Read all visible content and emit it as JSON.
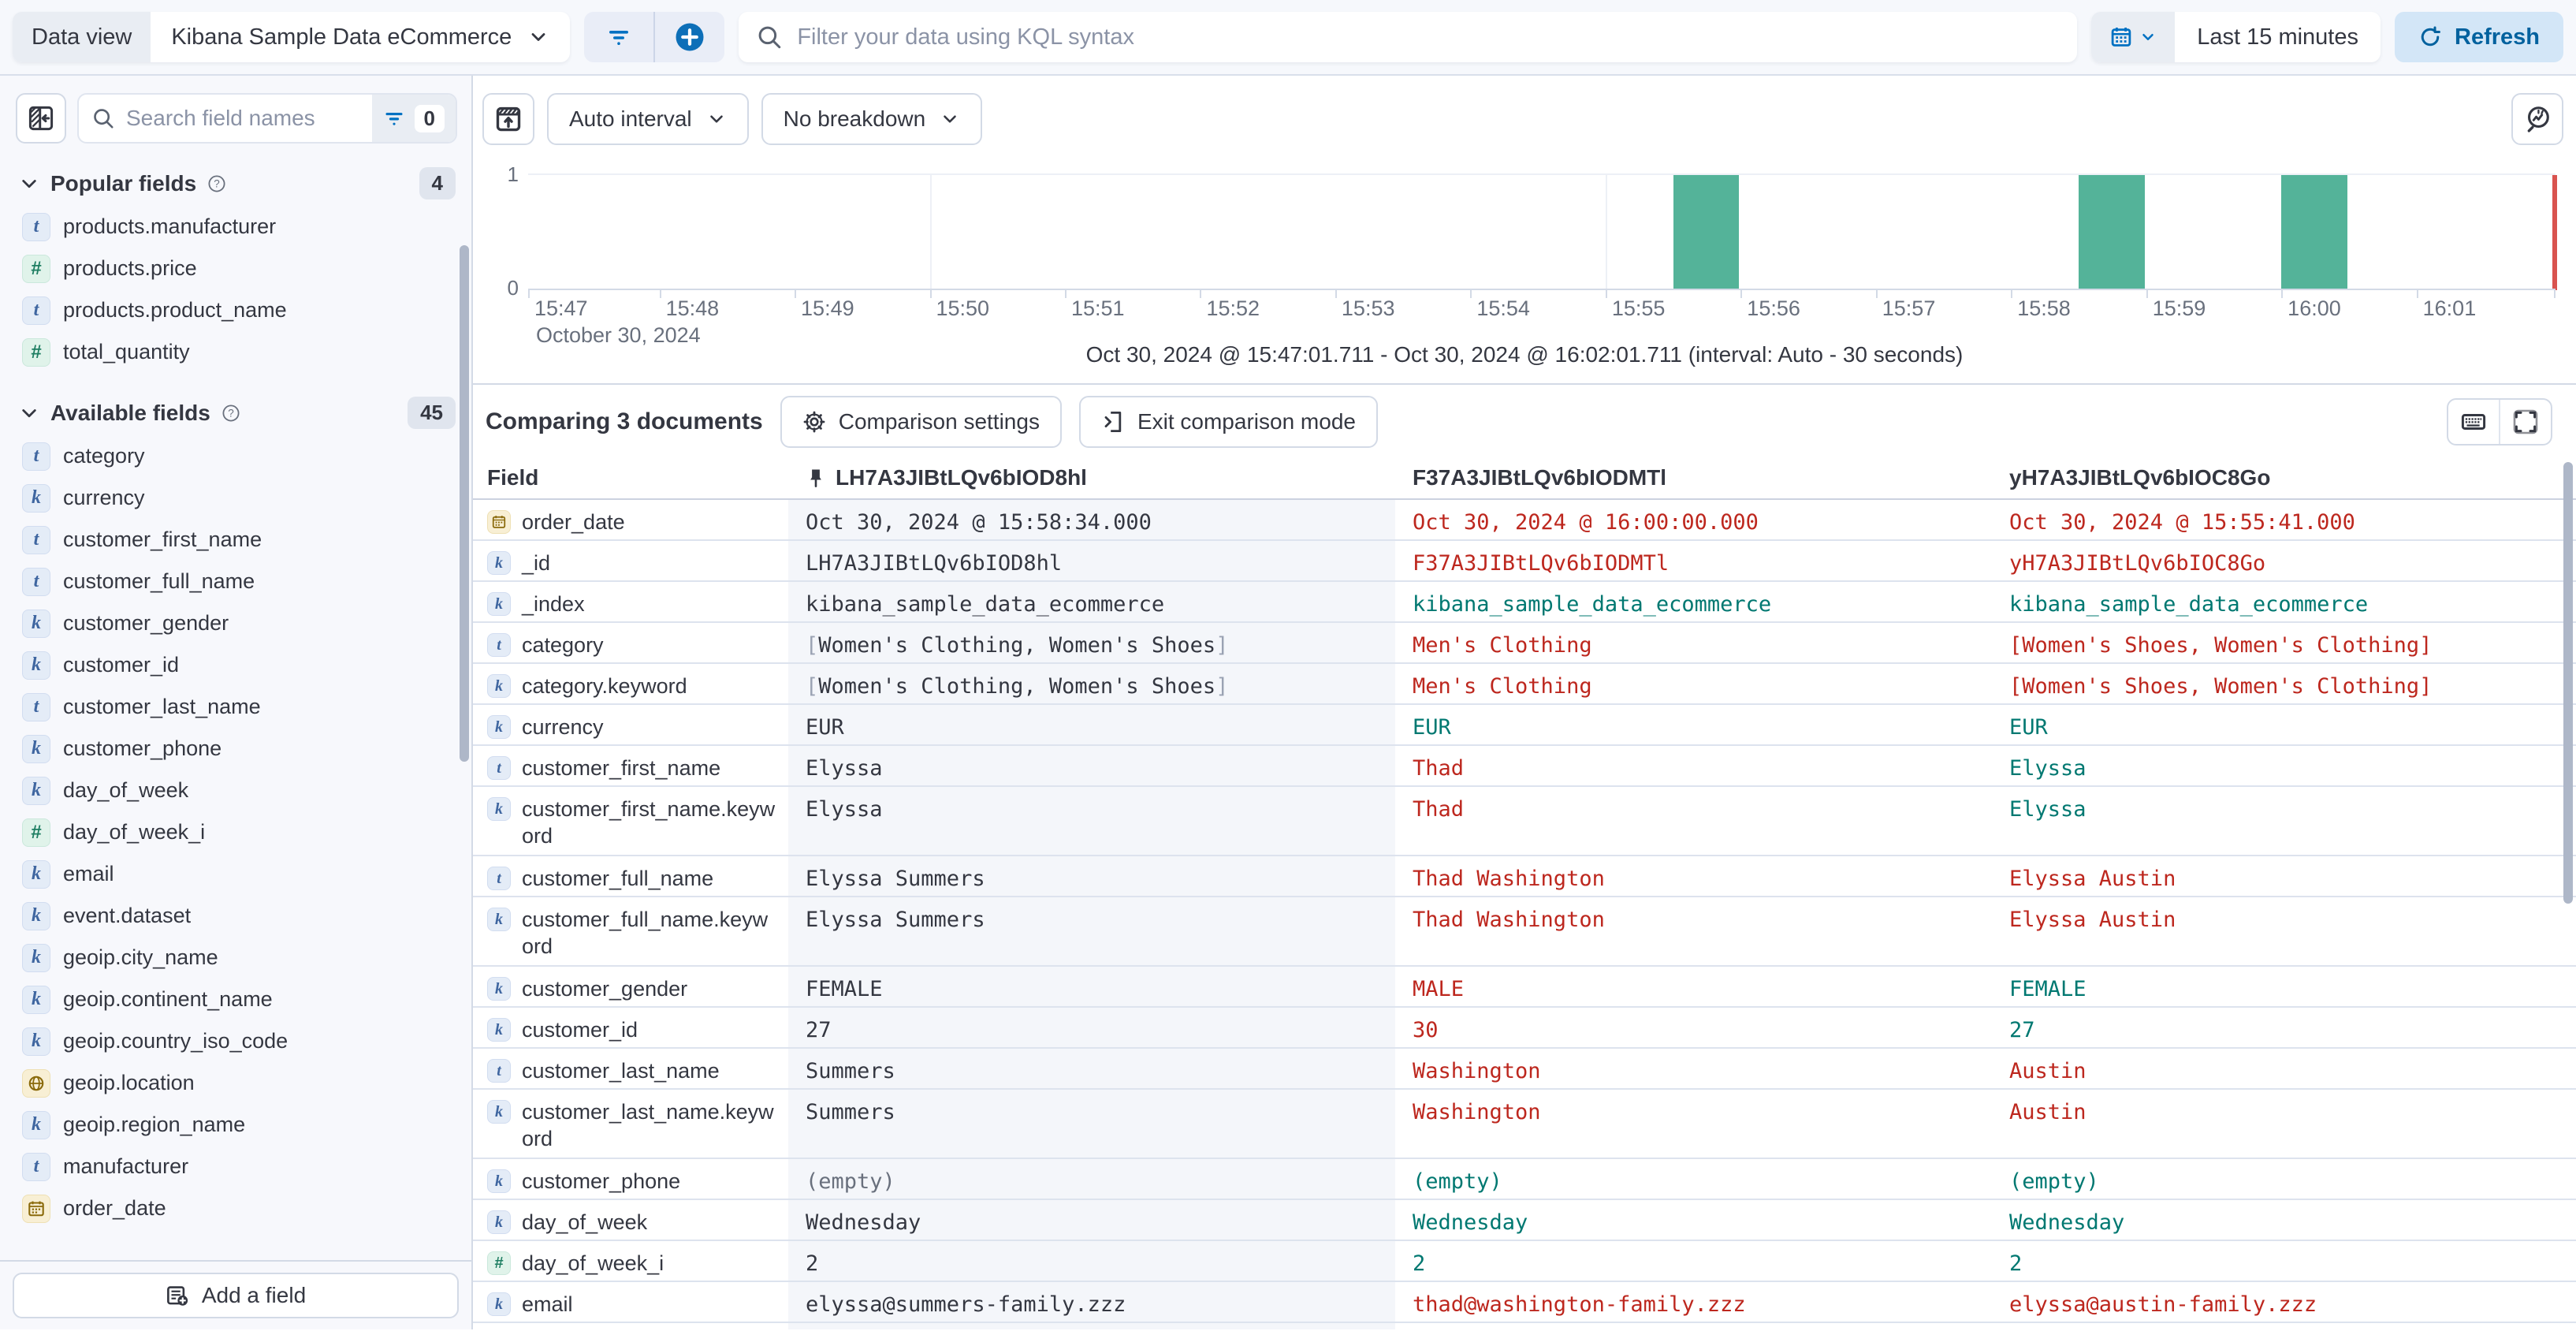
{
  "topbar": {
    "data_view_label": "Data view",
    "data_view_value": "Kibana Sample Data eCommerce",
    "kql_placeholder": "Filter your data using KQL syntax",
    "time_range_label": "Last 15 minutes",
    "refresh_label": "Refresh",
    "accent_blue": "#0071c2"
  },
  "sidebar": {
    "search_placeholder": "Search field names",
    "filter_count": "0",
    "popular": {
      "title": "Popular fields",
      "count": "4",
      "items": [
        {
          "name": "products.manufacturer",
          "icon": "t"
        },
        {
          "name": "products.price",
          "icon": "num"
        },
        {
          "name": "products.product_name",
          "icon": "t"
        },
        {
          "name": "total_quantity",
          "icon": "num"
        }
      ]
    },
    "available": {
      "title": "Available fields",
      "count": "45",
      "items": [
        {
          "name": "category",
          "icon": "t"
        },
        {
          "name": "currency",
          "icon": "k"
        },
        {
          "name": "customer_first_name",
          "icon": "t"
        },
        {
          "name": "customer_full_name",
          "icon": "t"
        },
        {
          "name": "customer_gender",
          "icon": "k"
        },
        {
          "name": "customer_id",
          "icon": "k"
        },
        {
          "name": "customer_last_name",
          "icon": "t"
        },
        {
          "name": "customer_phone",
          "icon": "k"
        },
        {
          "name": "day_of_week",
          "icon": "k"
        },
        {
          "name": "day_of_week_i",
          "icon": "num"
        },
        {
          "name": "email",
          "icon": "k"
        },
        {
          "name": "event.dataset",
          "icon": "k"
        },
        {
          "name": "geoip.city_name",
          "icon": "k"
        },
        {
          "name": "geoip.continent_name",
          "icon": "k"
        },
        {
          "name": "geoip.country_iso_code",
          "icon": "k"
        },
        {
          "name": "geoip.location",
          "icon": "geo"
        },
        {
          "name": "geoip.region_name",
          "icon": "k"
        },
        {
          "name": "manufacturer",
          "icon": "t"
        },
        {
          "name": "order_date",
          "icon": "date"
        }
      ]
    },
    "add_field_label": "Add a field"
  },
  "chart": {
    "interval_label": "Auto interval",
    "breakdown_label": "No breakdown",
    "caption": "Oct 30, 2024 @ 15:47:01.711 - Oct 30, 2024 @ 16:02:01.711 (interval: Auto - 30 seconds)",
    "date_label": "October 30, 2024"
  },
  "chart_data": {
    "type": "bar",
    "title": "Document count histogram",
    "x_domain": [
      "15:47:01.711",
      "16:02:01.711"
    ],
    "x_ticks": [
      "15:47",
      "15:48",
      "15:49",
      "15:50",
      "15:51",
      "15:52",
      "15:53",
      "15:54",
      "15:55",
      "15:56",
      "15:57",
      "15:58",
      "15:59",
      "16:00",
      "16:01"
    ],
    "grid_ticks": [
      "15:50",
      "15:55",
      "16:00"
    ],
    "y_ticks": [
      "1",
      "0"
    ],
    "ylim": [
      0,
      1
    ],
    "interval_seconds": 30,
    "bars": [
      {
        "time": "15:55:30",
        "value": 1
      },
      {
        "time": "15:58:30",
        "value": 1
      },
      {
        "time": "16:00:00",
        "value": 1
      }
    ],
    "bar_color": "#54b399",
    "end_marker_color": "#d9534f",
    "legend": "none",
    "grid": "vertical-5min"
  },
  "comparison": {
    "title": "Comparing 3 documents",
    "settings_label": "Comparison settings",
    "exit_label": "Exit comparison mode"
  },
  "table": {
    "field_header": "Field",
    "columns": [
      {
        "id": "LH7A3JIBtLQv6bIOD8hl",
        "pinned": true
      },
      {
        "id": "F37A3JIBtLQv6bIODMTl",
        "pinned": false
      },
      {
        "id": "yH7A3JIBtLQv6bIOC8Go",
        "pinned": false
      }
    ],
    "tone_colors": {
      "base": "#343741",
      "muted": "#69707d",
      "match": "#007871",
      "diff": "#bd271e"
    },
    "rows": [
      {
        "field": "order_date",
        "icon": "date",
        "tall": false,
        "cells": [
          {
            "text": "Oct 30, 2024 @ 15:58:34.000",
            "tone": "base"
          },
          {
            "text": "Oct 30, 2024 @ 16:00:00.000",
            "tone": "diff"
          },
          {
            "text": "Oct 30, 2024 @ 15:55:41.000",
            "tone": "diff"
          }
        ]
      },
      {
        "field": "_id",
        "icon": "k",
        "tall": false,
        "cells": [
          {
            "text": "LH7A3JIBtLQv6bIOD8hl",
            "tone": "base"
          },
          {
            "text": "F37A3JIBtLQv6bIODMTl",
            "tone": "diff"
          },
          {
            "text": "yH7A3JIBtLQv6bIOC8Go",
            "tone": "diff"
          }
        ]
      },
      {
        "field": "_index",
        "icon": "k",
        "tall": false,
        "cells": [
          {
            "text": "kibana_sample_data_ecommerce",
            "tone": "base"
          },
          {
            "text": "kibana_sample_data_ecommerce",
            "tone": "match"
          },
          {
            "text": "kibana_sample_data_ecommerce",
            "tone": "match"
          }
        ]
      },
      {
        "field": "category",
        "icon": "t",
        "tall": false,
        "cells": [
          {
            "text": "[Women's Clothing, Women's Shoes]",
            "tone": "base"
          },
          {
            "text": "Men's Clothing",
            "tone": "diff"
          },
          {
            "text": "[Women's Shoes, Women's Clothing]",
            "tone": "diff"
          }
        ]
      },
      {
        "field": "category.keyword",
        "icon": "k",
        "tall": false,
        "cells": [
          {
            "text": "[Women's Clothing, Women's Shoes]",
            "tone": "base"
          },
          {
            "text": "Men's Clothing",
            "tone": "diff"
          },
          {
            "text": "[Women's Shoes, Women's Clothing]",
            "tone": "diff"
          }
        ]
      },
      {
        "field": "currency",
        "icon": "k",
        "tall": false,
        "cells": [
          {
            "text": "EUR",
            "tone": "base"
          },
          {
            "text": "EUR",
            "tone": "match"
          },
          {
            "text": "EUR",
            "tone": "match"
          }
        ]
      },
      {
        "field": "customer_first_name",
        "icon": "t",
        "tall": false,
        "cells": [
          {
            "text": "Elyssa",
            "tone": "base"
          },
          {
            "text": "Thad",
            "tone": "diff"
          },
          {
            "text": "Elyssa",
            "tone": "match"
          }
        ]
      },
      {
        "field": "customer_first_name.keyword",
        "icon": "k",
        "tall": true,
        "cells": [
          {
            "text": "Elyssa",
            "tone": "base"
          },
          {
            "text": "Thad",
            "tone": "diff"
          },
          {
            "text": "Elyssa",
            "tone": "match"
          }
        ]
      },
      {
        "field": "customer_full_name",
        "icon": "t",
        "tall": false,
        "cells": [
          {
            "text": "Elyssa Summers",
            "tone": "base"
          },
          {
            "text": "Thad Washington",
            "tone": "diff"
          },
          {
            "text": "Elyssa Austin",
            "tone": "diff"
          }
        ]
      },
      {
        "field": "customer_full_name.keyword",
        "icon": "k",
        "tall": true,
        "cells": [
          {
            "text": "Elyssa Summers",
            "tone": "base"
          },
          {
            "text": "Thad Washington",
            "tone": "diff"
          },
          {
            "text": "Elyssa Austin",
            "tone": "diff"
          }
        ]
      },
      {
        "field": "customer_gender",
        "icon": "k",
        "tall": false,
        "cells": [
          {
            "text": "FEMALE",
            "tone": "base"
          },
          {
            "text": "MALE",
            "tone": "diff"
          },
          {
            "text": "FEMALE",
            "tone": "match"
          }
        ]
      },
      {
        "field": "customer_id",
        "icon": "k",
        "tall": false,
        "cells": [
          {
            "text": "27",
            "tone": "base"
          },
          {
            "text": "30",
            "tone": "diff"
          },
          {
            "text": "27",
            "tone": "match"
          }
        ]
      },
      {
        "field": "customer_last_name",
        "icon": "t",
        "tall": false,
        "cells": [
          {
            "text": "Summers",
            "tone": "base"
          },
          {
            "text": "Washington",
            "tone": "diff"
          },
          {
            "text": "Austin",
            "tone": "diff"
          }
        ]
      },
      {
        "field": "customer_last_name.keyword",
        "icon": "k",
        "tall": true,
        "cells": [
          {
            "text": "Summers",
            "tone": "base"
          },
          {
            "text": "Washington",
            "tone": "diff"
          },
          {
            "text": "Austin",
            "tone": "diff"
          }
        ]
      },
      {
        "field": "customer_phone",
        "icon": "k",
        "tall": false,
        "cells": [
          {
            "text": "(empty)",
            "tone": "muted"
          },
          {
            "text": "(empty)",
            "tone": "match"
          },
          {
            "text": "(empty)",
            "tone": "match"
          }
        ]
      },
      {
        "field": "day_of_week",
        "icon": "k",
        "tall": false,
        "cells": [
          {
            "text": "Wednesday",
            "tone": "base"
          },
          {
            "text": "Wednesday",
            "tone": "match"
          },
          {
            "text": "Wednesday",
            "tone": "match"
          }
        ]
      },
      {
        "field": "day_of_week_i",
        "icon": "num",
        "tall": false,
        "cells": [
          {
            "text": "2",
            "tone": "base"
          },
          {
            "text": "2",
            "tone": "match"
          },
          {
            "text": "2",
            "tone": "match"
          }
        ]
      },
      {
        "field": "email",
        "icon": "k",
        "tall": false,
        "cells": [
          {
            "text": "elyssa@summers-family.zzz",
            "tone": "base"
          },
          {
            "text": "thad@washington-family.zzz",
            "tone": "diff"
          },
          {
            "text": "elyssa@austin-family.zzz",
            "tone": "diff"
          }
        ]
      }
    ]
  }
}
